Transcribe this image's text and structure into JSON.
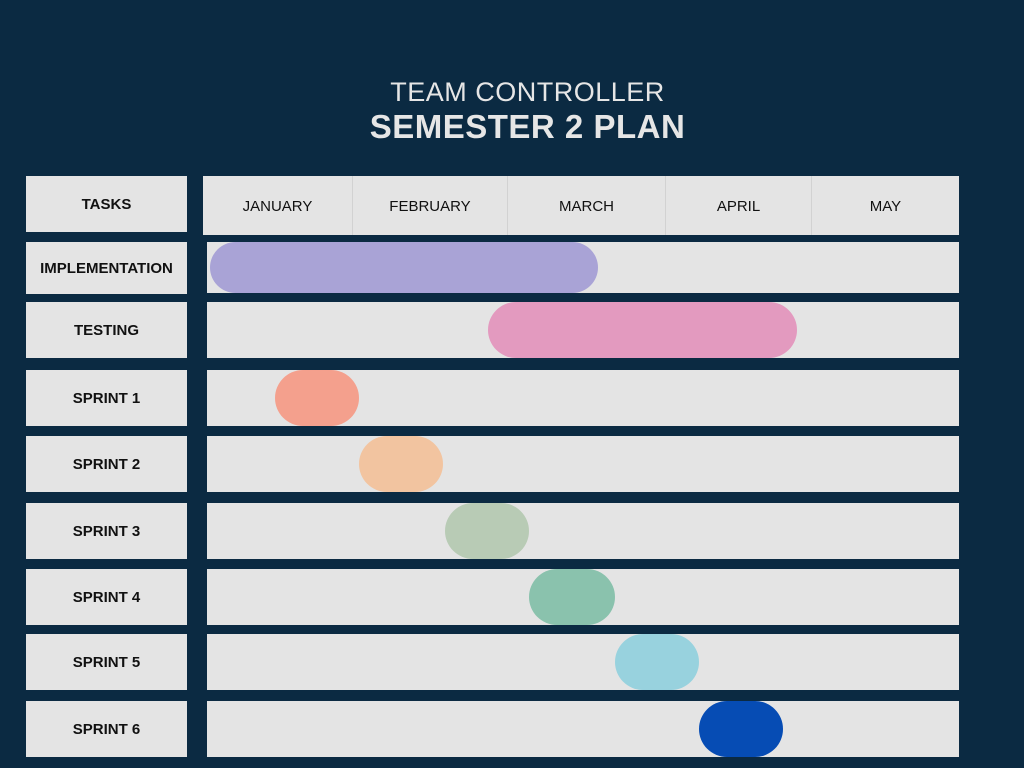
{
  "header": {
    "line1": "TEAM CONTROLLER",
    "line2": "SEMESTER 2 PLAN"
  },
  "tasks_header": "TASKS",
  "months": [
    "JANUARY",
    "FEBRUARY",
    "MARCH",
    "APRIL",
    "MAY"
  ],
  "colors": {
    "background": "#0b2a42",
    "cell": "#e4e4e4"
  },
  "chart_data": {
    "type": "gantt",
    "x_axis": "month",
    "categories": [
      "JANUARY",
      "FEBRUARY",
      "MARCH",
      "APRIL",
      "MAY"
    ],
    "xlim": [
      0,
      5
    ],
    "tasks": [
      {
        "name": "IMPLEMENTATION",
        "start": 0.02,
        "end": 2.6,
        "color": "#a9a3d6"
      },
      {
        "name": "TESTING",
        "start": 1.87,
        "end": 3.92,
        "color": "#e39abf"
      },
      {
        "name": "SPRINT 1",
        "start": 0.45,
        "end": 1.01,
        "color": "#f4a08d"
      },
      {
        "name": "SPRINT 2",
        "start": 1.01,
        "end": 1.57,
        "color": "#f2c4a0"
      },
      {
        "name": "SPRINT 3",
        "start": 1.58,
        "end": 2.14,
        "color": "#b8cbb5"
      },
      {
        "name": "SPRINT 4",
        "start": 2.14,
        "end": 2.71,
        "color": "#8ac2ad"
      },
      {
        "name": "SPRINT 5",
        "start": 2.71,
        "end": 3.27,
        "color": "#98d2de"
      },
      {
        "name": "SPRINT 6",
        "start": 3.27,
        "end": 3.83,
        "color": "#064cb4"
      }
    ]
  }
}
